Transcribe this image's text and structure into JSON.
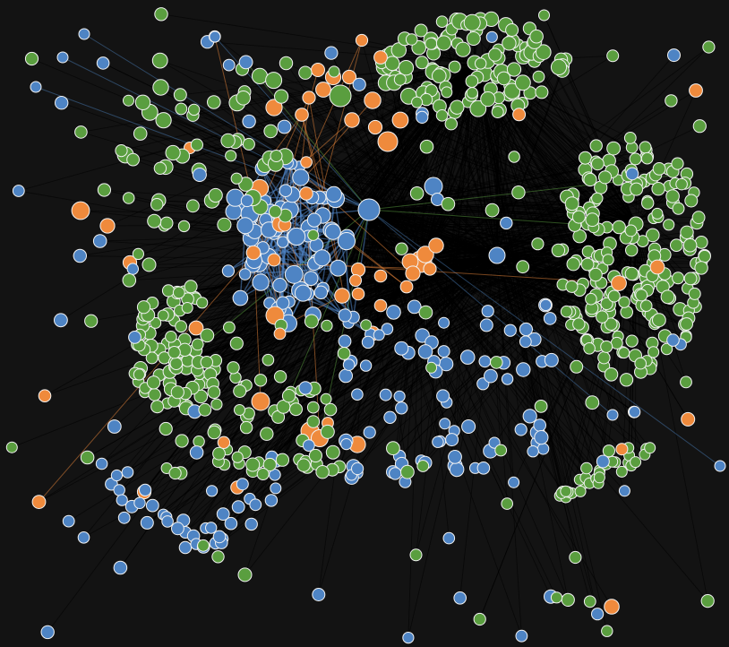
{
  "graph": {
    "background": "#131313",
    "node_stroke": "#f2f2f2",
    "groups": [
      {
        "name": "blue",
        "color": "#4e84c4"
      },
      {
        "name": "green",
        "color": "#5a9e3f"
      },
      {
        "name": "orange",
        "color": "#ef8a3c"
      }
    ],
    "edge_colors": {
      "default": "#000000",
      "blue": "#4e84c4",
      "orange": "#ef8a3c",
      "green": "#5a9e3f"
    },
    "hubs": [
      "blue-hub",
      "orange-hub",
      "mid-hub",
      "right-hub",
      "top-hub"
    ],
    "clusters": [
      "blue-core",
      "orange-core",
      "top-right-green",
      "right-green",
      "left-green",
      "bottom-left-blue",
      "bottom-blue",
      "bottom-right-green",
      "scatter"
    ]
  }
}
